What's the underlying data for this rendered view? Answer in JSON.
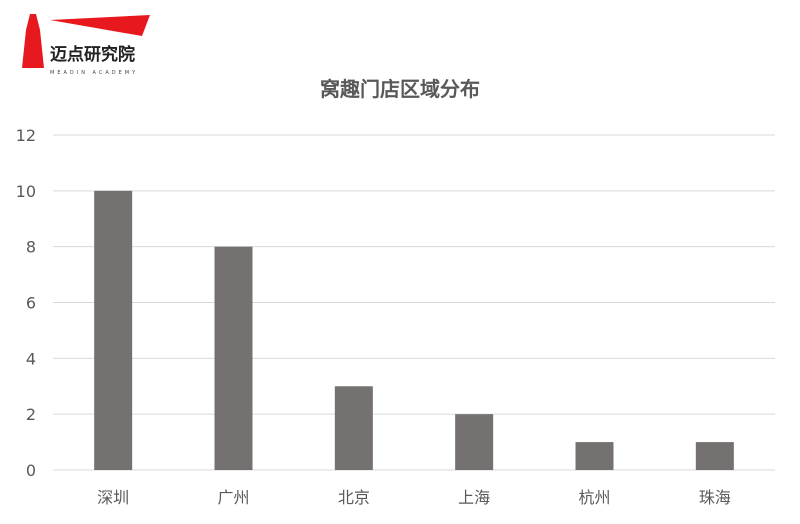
{
  "logo": {
    "name": "迈点研究院",
    "sub": "MEADIN ACADEMY",
    "color": "#e8191e"
  },
  "chart_data": {
    "type": "bar",
    "title": "窝趣门店区域分布",
    "categories": [
      "深圳",
      "广州",
      "北京",
      "上海",
      "杭州",
      "珠海"
    ],
    "values": [
      10,
      8,
      3,
      2,
      1,
      1
    ],
    "ylim": [
      0,
      12
    ],
    "yticks": [
      0,
      2,
      4,
      6,
      8,
      10,
      12
    ],
    "grid": true,
    "bar_color": "#767171",
    "xlabel": "",
    "ylabel": ""
  }
}
